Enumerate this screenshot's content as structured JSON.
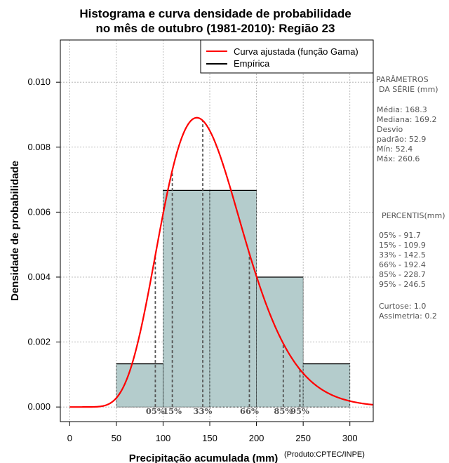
{
  "chart_data": {
    "type": "bar",
    "title_lines": [
      "Histograma e curva densidade de probabilidade",
      "no mês de outubro (1981-2010): Região 23"
    ],
    "xlabel": "Precipitação acumulada (mm)",
    "ylabel": "Densidade de probabilidade",
    "credit": "(Produto:CPTEC/INPE)",
    "xlim": [
      -10,
      325
    ],
    "ylim": [
      -0.00045,
      0.0113
    ],
    "x_ticks": [
      0,
      50,
      100,
      150,
      200,
      250,
      300
    ],
    "y_ticks": [
      0.0,
      0.002,
      0.004,
      0.006,
      0.008,
      0.01
    ],
    "y_tick_labels": [
      "0.000",
      "0.002",
      "0.004",
      "0.006",
      "0.008",
      "0.010"
    ],
    "bins": [
      {
        "from": 50,
        "to": 100,
        "density": 0.00133
      },
      {
        "from": 100,
        "to": 150,
        "density": 0.00667
      },
      {
        "from": 150,
        "to": 200,
        "density": 0.00667
      },
      {
        "from": 200,
        "to": 250,
        "density": 0.004
      },
      {
        "from": 250,
        "to": 300,
        "density": 0.00133
      }
    ],
    "gamma_fit": {
      "shape": 10.4,
      "scale": 14.48
    },
    "percentile_lines": [
      {
        "label": "05%",
        "value": 91.7
      },
      {
        "label": "15%",
        "value": 109.9
      },
      {
        "label": "33%",
        "value": 142.5
      },
      {
        "label": "66%",
        "value": 192.4
      },
      {
        "label": "85%",
        "value": 228.7
      },
      {
        "label": "95%",
        "value": 246.5
      }
    ],
    "legend": {
      "position": "top-right",
      "entries": [
        {
          "label": "Curva ajustada (função Gama)",
          "color": "#ff0000"
        },
        {
          "label": "Empírica",
          "color": "#000000"
        }
      ]
    },
    "colors": {
      "bar_fill": "#b4cccc",
      "curve": "#ff0000",
      "grid": "#aaaaaa",
      "percentile": "#555555"
    }
  },
  "side_panel": {
    "params_title_1": "PARÂMETROS",
    "params_title_2": "DA SÉRIE (mm)",
    "media": "Média:  168.3",
    "mediana": "Mediana:  169.2",
    "desvio_1": "Desvio",
    "desvio_2": "padrão:  52.9",
    "min": "Mín:  52.4",
    "max": "Máx:  260.6",
    "percentis_title": "PERCENTIS(mm)",
    "percentis": [
      "05% -   91.7",
      "15% -   109.9",
      "33% -   142.5",
      "66% -   192.4",
      "85% -   228.7",
      "95% -   246.5"
    ],
    "curtose": "Curtose:  1.0",
    "assimetria": "Assimetria:  0.2"
  }
}
